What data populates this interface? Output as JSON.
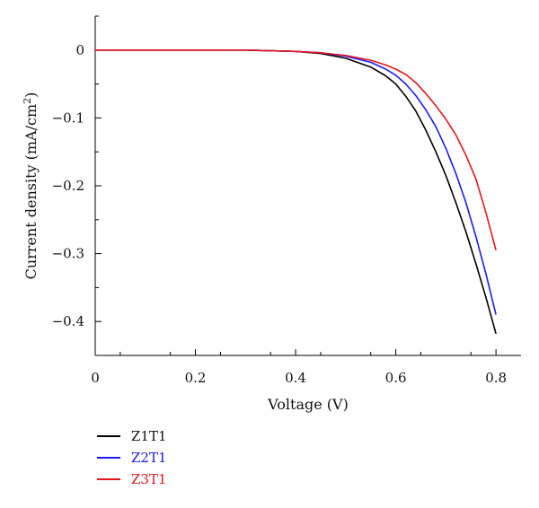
{
  "chart_data": {
    "type": "line",
    "xlabel": "Voltage (V)",
    "ylabel_main": "Current density (mA/cm",
    "ylabel_sup": "2",
    "ylabel_end": ")",
    "xlim": [
      0,
      0.85
    ],
    "ylim": [
      -0.45,
      0.05
    ],
    "xticks": [
      0,
      0.2,
      0.4,
      0.6,
      0.8
    ],
    "xtick_labels": [
      "0",
      "0.2",
      "0.4",
      "0.6",
      "0.8"
    ],
    "yticks": [
      0,
      -0.1,
      -0.2,
      -0.3,
      -0.4
    ],
    "ytick_labels": [
      "0",
      "−0.1",
      "−0.2",
      "−0.3",
      "−0.4"
    ],
    "legend_position": "below",
    "series": [
      {
        "name": "Z1T1",
        "color": "#000000",
        "x": [
          0,
          0.3,
          0.4,
          0.45,
          0.5,
          0.55,
          0.58,
          0.6,
          0.62,
          0.64,
          0.66,
          0.68,
          0.7,
          0.72,
          0.74,
          0.76,
          0.78,
          0.8
        ],
        "y": [
          0,
          0,
          -0.002,
          -0.005,
          -0.012,
          -0.025,
          -0.038,
          -0.05,
          -0.068,
          -0.09,
          -0.118,
          -0.15,
          -0.185,
          -0.225,
          -0.268,
          -0.315,
          -0.365,
          -0.418
        ]
      },
      {
        "name": "Z2T1",
        "color": "#1a1aff",
        "x": [
          0,
          0.3,
          0.4,
          0.45,
          0.5,
          0.55,
          0.58,
          0.6,
          0.62,
          0.64,
          0.66,
          0.68,
          0.7,
          0.72,
          0.74,
          0.76,
          0.78,
          0.8
        ],
        "y": [
          0,
          0,
          -0.002,
          -0.004,
          -0.009,
          -0.018,
          -0.028,
          -0.037,
          -0.05,
          -0.067,
          -0.088,
          -0.113,
          -0.145,
          -0.182,
          -0.225,
          -0.275,
          -0.33,
          -0.39
        ]
      },
      {
        "name": "Z3T1",
        "color": "#e8141c",
        "x": [
          0,
          0.3,
          0.4,
          0.45,
          0.5,
          0.55,
          0.58,
          0.6,
          0.62,
          0.64,
          0.66,
          0.68,
          0.7,
          0.72,
          0.74,
          0.76,
          0.78,
          0.8
        ],
        "y": [
          0,
          0,
          -0.002,
          -0.004,
          -0.008,
          -0.015,
          -0.022,
          -0.028,
          -0.036,
          -0.048,
          -0.064,
          -0.082,
          -0.102,
          -0.125,
          -0.155,
          -0.19,
          -0.24,
          -0.295
        ]
      }
    ]
  }
}
